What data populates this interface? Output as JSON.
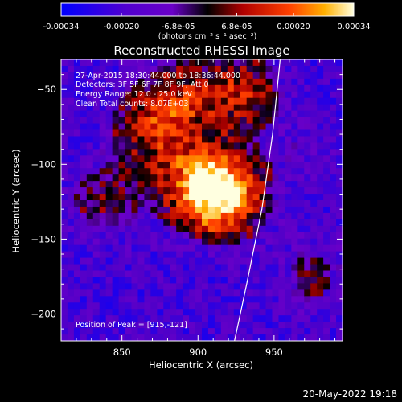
{
  "colorbar": {
    "tick_labels": [
      "-0.00034",
      "-0.00020",
      "-6.8e-05",
      "6.8e-05",
      "0.00020",
      "0.00034"
    ],
    "tick_values": [
      -0.00034,
      -0.0002,
      -6.8e-05,
      6.8e-05,
      0.0002,
      0.00034
    ],
    "range": [
      -0.00034,
      0.00034
    ],
    "units_label": "(photons cm⁻² s⁻¹ asec⁻²)"
  },
  "annotations": {
    "time": "27-Apr-2015 18:30:44.000 to 18:36:44.000",
    "detectors": "Detectors: 3F 5F 6F 7F 8F 9F, Att 0",
    "energy": "Energy Range: 12.0 - 25.0 keV",
    "clean": "Clean     Total counts: 8.07E+03",
    "peak": "Position of Peak = [915,-121]"
  },
  "footer": {
    "timestamp": "20-May-2022 19:18"
  },
  "chart_data": {
    "type": "heatmap",
    "title": "Reconstructed RHESSI Image",
    "xlabel": "Heliocentric X (arcsec)",
    "ylabel": "Heliocentric Y (arcsec)",
    "xlim": [
      810,
      995
    ],
    "ylim": [
      -218,
      -30
    ],
    "x_ticks": [
      850,
      900,
      950
    ],
    "x_tick_labels": [
      "850",
      "900",
      "950"
    ],
    "y_ticks": [
      -50,
      -100,
      -150,
      -200
    ],
    "y_tick_labels": [
      "−50",
      "−100",
      "−150",
      "−200"
    ],
    "peak_position": [
      915,
      -121
    ],
    "sources": [
      {
        "x": 915,
        "y": -121,
        "intensity": 0.00034
      },
      {
        "x": 900,
        "y": -110,
        "intensity": 0.0002
      },
      {
        "x": 888,
        "y": -58,
        "intensity": 0.00015
      },
      {
        "x": 928,
        "y": -52,
        "intensity": 0.00016
      },
      {
        "x": 868,
        "y": -78,
        "intensity": 0.00014
      },
      {
        "x": 838,
        "y": -125,
        "intensity": 0.0001
      },
      {
        "x": 975,
        "y": -175,
        "intensity": 8e-05
      },
      {
        "x": 972,
        "y": -90,
        "intensity": 5e-05
      }
    ],
    "limb_curve": [
      [
        954,
        -30
      ],
      [
        949,
        -80
      ],
      [
        942,
        -130
      ],
      [
        932,
        -180
      ],
      [
        924,
        -218
      ]
    ],
    "grid": false,
    "colormap": [
      "#0000ff",
      "#6a00c8",
      "#000000",
      "#a00000",
      "#ff3000",
      "#ffa000",
      "#ffffd0"
    ]
  }
}
